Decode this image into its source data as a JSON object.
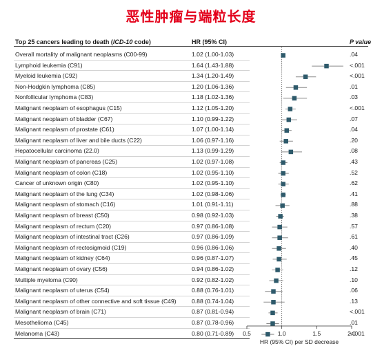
{
  "title": "恶性肿瘤与端粒长度",
  "headers": {
    "label_prefix": "Top 25 cancers leading to death (",
    "label_code": "ICD-10",
    "label_suffix": " code)",
    "hr": "HR (95% CI)",
    "p": "P value"
  },
  "rows": [
    {
      "label": "Overall mortality of malignant neoplasms (C00-99)",
      "hr_text": "1.02 (1.00-1.03)",
      "p": ".04"
    },
    {
      "label": "Lymphoid leukemia (C91)",
      "hr_text": "1.64 (1.43-1.88)",
      "p": "<.001"
    },
    {
      "label": "Myeloid leukemia (C92)",
      "hr_text": "1.34 (1.20-1.49)",
      "p": "<.001"
    },
    {
      "label": "Non-Hodgkin lymphoma (C85)",
      "hr_text": "1.20 (1.06-1.36)",
      "p": ".01"
    },
    {
      "label": "Nonfollicular lymphoma (C83)",
      "hr_text": "1.18 (1.02-1.36)",
      "p": ".03"
    },
    {
      "label": "Malignant neoplasm of esophagus (C15)",
      "hr_text": "1.12 (1.05-1.20)",
      "p": "<.001"
    },
    {
      "label": "Malignant neoplasm of bladder (C67)",
      "hr_text": "1.10 (0.99-1.22)",
      "p": ".07"
    },
    {
      "label": "Malignant neoplasm of prostate (C61)",
      "hr_text": "1.07 (1.00-1.14)",
      "p": ".04"
    },
    {
      "label": "Malignant neoplasm of liver and bile ducts (C22)",
      "hr_text": "1.06 (0.97-1.16)",
      "p": ".20"
    },
    {
      "label": "Hepatocellular carcinoma (22.0)",
      "hr_text": "1.13 (0.99-1.29)",
      "p": ".08"
    },
    {
      "label": "Malignant neoplasm of pancreas (C25)",
      "hr_text": "1.02 (0.97-1.08)",
      "p": ".43"
    },
    {
      "label": "Malignant neoplasm of colon (C18)",
      "hr_text": "1.02 (0.95-1.10)",
      "p": ".52"
    },
    {
      "label": "Cancer of unknown origin (C80)",
      "hr_text": "1.02 (0.95-1.10)",
      "p": ".62"
    },
    {
      "label": "Malignant neoplasm of the lung (C34)",
      "hr_text": "1.02 (0.98-1.06)",
      "p": ".41"
    },
    {
      "label": "Malignant neoplasm of stomach (C16)",
      "hr_text": "1.01 (0.91-1.11)",
      "p": ".88"
    },
    {
      "label": "Malignant neoplasm of breast (C50)",
      "hr_text": "0.98 (0.92-1.03)",
      "p": ".38"
    },
    {
      "label": "Malignant neoplasm of rectum (C20)",
      "hr_text": "0.97 (0.86-1.08)",
      "p": ".57"
    },
    {
      "label": "Malignant neoplasm of intestinal tract (C26)",
      "hr_text": "0.97 (0.86-1.09)",
      "p": ".61"
    },
    {
      "label": "Malignant neoplasm of rectosigmoid (C19)",
      "hr_text": "0.96 (0.86-1.06)",
      "p": ".40"
    },
    {
      "label": "Malignant neoplasm of kidney (C64)",
      "hr_text": "0.96 (0.87-1.07)",
      "p": ".45"
    },
    {
      "label": "Malignant neoplasm of ovary (C56)",
      "hr_text": "0.94 (0.86-1.02)",
      "p": ".12"
    },
    {
      "label": "Multiple myeloma (C90)",
      "hr_text": "0.92 (0.82-1.02)",
      "p": ".10"
    },
    {
      "label": "Malignant neoplasm of uterus (C54)",
      "hr_text": "0.88 (0.76-1.01)",
      "p": ".06"
    },
    {
      "label": "Malignant neoplasm of other connective and soft tissue (C49)",
      "hr_text": "0.88 (0.74-1.04)",
      "p": ".13"
    },
    {
      "label": "Malignant neoplasm of brain (C71)",
      "hr_text": "0.87 (0.81-0.94)",
      "p": "<.001"
    },
    {
      "label": "Mesothelioma (C45)",
      "hr_text": "0.87 (0.78-0.96)",
      "p": ".01"
    },
    {
      "label": "Melanoma (C43)",
      "hr_text": "0.80 (0.71-0.89)",
      "p": "<.001"
    }
  ],
  "chart_data": {
    "type": "forest",
    "xlabel": "HR (95% CI) per SD decrease",
    "xlim": [
      0.5,
      2.0
    ],
    "xticks": [
      0.5,
      1.0,
      1.5,
      2.0
    ],
    "xtick_labels": [
      "0.5",
      "1.0",
      "1.5",
      "2.0"
    ],
    "reference_line": 1.0,
    "marker_color": "#2e5a6b",
    "points": [
      {
        "hr": 1.02,
        "lo": 1.0,
        "hi": 1.03
      },
      {
        "hr": 1.64,
        "lo": 1.43,
        "hi": 1.88
      },
      {
        "hr": 1.34,
        "lo": 1.2,
        "hi": 1.49
      },
      {
        "hr": 1.2,
        "lo": 1.06,
        "hi": 1.36
      },
      {
        "hr": 1.18,
        "lo": 1.02,
        "hi": 1.36
      },
      {
        "hr": 1.12,
        "lo": 1.05,
        "hi": 1.2
      },
      {
        "hr": 1.1,
        "lo": 0.99,
        "hi": 1.22
      },
      {
        "hr": 1.07,
        "lo": 1.0,
        "hi": 1.14
      },
      {
        "hr": 1.06,
        "lo": 0.97,
        "hi": 1.16
      },
      {
        "hr": 1.13,
        "lo": 0.99,
        "hi": 1.29
      },
      {
        "hr": 1.02,
        "lo": 0.97,
        "hi": 1.08
      },
      {
        "hr": 1.02,
        "lo": 0.95,
        "hi": 1.1
      },
      {
        "hr": 1.02,
        "lo": 0.95,
        "hi": 1.1
      },
      {
        "hr": 1.02,
        "lo": 0.98,
        "hi": 1.06
      },
      {
        "hr": 1.01,
        "lo": 0.91,
        "hi": 1.11
      },
      {
        "hr": 0.98,
        "lo": 0.92,
        "hi": 1.03
      },
      {
        "hr": 0.97,
        "lo": 0.86,
        "hi": 1.08
      },
      {
        "hr": 0.97,
        "lo": 0.86,
        "hi": 1.09
      },
      {
        "hr": 0.96,
        "lo": 0.86,
        "hi": 1.06
      },
      {
        "hr": 0.96,
        "lo": 0.87,
        "hi": 1.07
      },
      {
        "hr": 0.94,
        "lo": 0.86,
        "hi": 1.02
      },
      {
        "hr": 0.92,
        "lo": 0.82,
        "hi": 1.02
      },
      {
        "hr": 0.88,
        "lo": 0.76,
        "hi": 1.01
      },
      {
        "hr": 0.88,
        "lo": 0.74,
        "hi": 1.04
      },
      {
        "hr": 0.87,
        "lo": 0.81,
        "hi": 0.94
      },
      {
        "hr": 0.87,
        "lo": 0.78,
        "hi": 0.96
      },
      {
        "hr": 0.8,
        "lo": 0.71,
        "hi": 0.89
      }
    ]
  }
}
